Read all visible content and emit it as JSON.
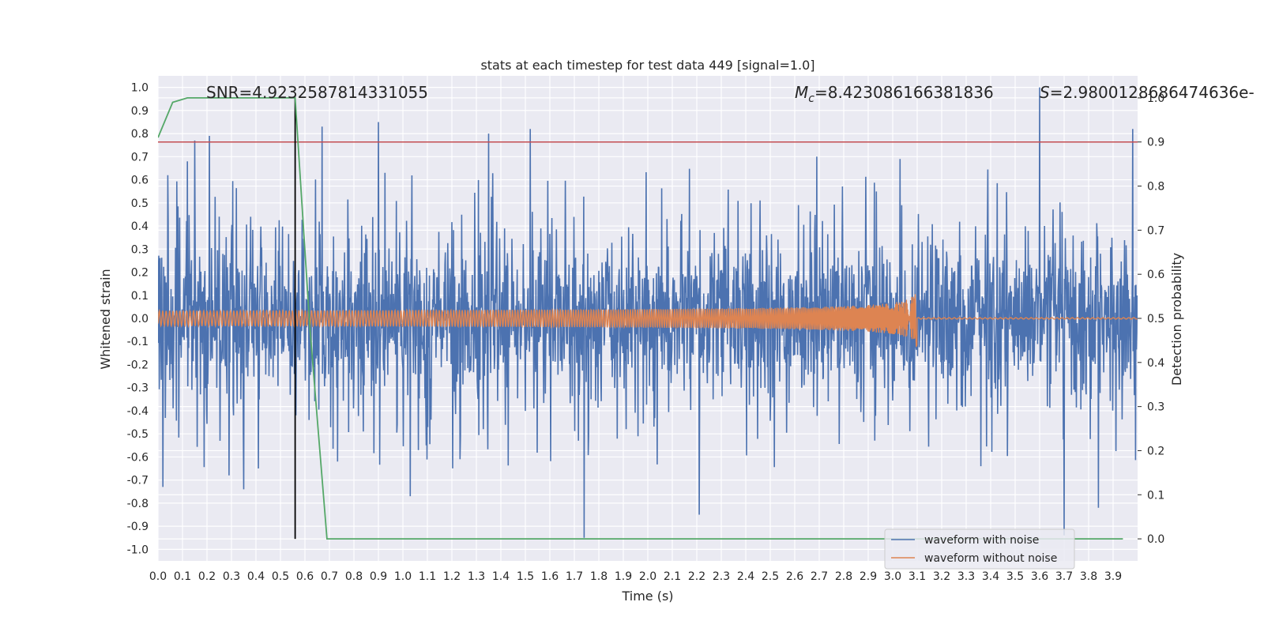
{
  "chart_data": {
    "type": "line",
    "title": "stats at each timestep for test data 449 [signal=1.0]",
    "xlabel": "Time (s)",
    "ylabel": "Whitened strain",
    "ylabel_right": "Detection probability",
    "xlim": [
      0.0,
      4.0
    ],
    "ylim": [
      -1.05,
      1.05
    ],
    "ylim_right": [
      -0.05,
      1.05
    ],
    "x_ticks": [
      "0.0",
      "0.1",
      "0.2",
      "0.3",
      "0.4",
      "0.5",
      "0.6",
      "0.7",
      "0.8",
      "0.9",
      "1.0",
      "1.1",
      "1.2",
      "1.3",
      "1.4",
      "1.5",
      "1.6",
      "1.7",
      "1.8",
      "1.9",
      "2.0",
      "2.1",
      "2.2",
      "2.3",
      "2.4",
      "2.5",
      "2.6",
      "2.7",
      "2.8",
      "2.9",
      "3.0",
      "3.1",
      "3.2",
      "3.3",
      "3.4",
      "3.5",
      "3.6",
      "3.7",
      "3.8",
      "3.9"
    ],
    "y_ticks": [
      "1.0",
      "0.9",
      "0.8",
      "0.7",
      "0.6",
      "0.5",
      "0.4",
      "0.3",
      "0.2",
      "0.1",
      "0.0",
      "-0.1",
      "-0.2",
      "-0.3",
      "-0.4",
      "-0.5",
      "-0.6",
      "-0.7",
      "-0.8",
      "-0.9",
      "-1.0"
    ],
    "y_ticks_right": [
      "1.0",
      "0.9",
      "0.8",
      "0.7",
      "0.6",
      "0.5",
      "0.4",
      "0.3",
      "0.2",
      "0.1",
      "0.0"
    ],
    "grid": true,
    "legend_position": "bottom-right",
    "annotations": {
      "snr": "SNR=4.9232587814331055",
      "mc_symbol": "M",
      "mc_subscript": "c",
      "mc_value": "=8.423086166381836",
      "s_symbol": "S",
      "s_value": "=2.980012868647463​6e-"
    },
    "series": [
      {
        "name": "waveform with noise",
        "color": "#4c72b0",
        "axis": "left",
        "description_peaks": [
          [
            0.02,
            -0.73
          ],
          [
            0.04,
            0.62
          ],
          [
            0.12,
            0.68
          ],
          [
            0.15,
            0.77
          ],
          [
            0.21,
            0.79
          ],
          [
            0.29,
            -0.68
          ],
          [
            0.35,
            -0.74
          ],
          [
            0.41,
            -0.65
          ],
          [
            0.67,
            0.83
          ],
          [
            0.9,
            0.85
          ],
          [
            1.03,
            -0.77
          ],
          [
            1.35,
            0.8
          ],
          [
            1.52,
            0.82
          ],
          [
            1.74,
            -0.95
          ],
          [
            2.21,
            -0.85
          ],
          [
            2.69,
            0.7
          ],
          [
            3.03,
            0.69
          ],
          [
            3.6,
            1.0
          ],
          [
            3.7,
            -0.94
          ],
          [
            3.84,
            -0.82
          ],
          [
            3.98,
            0.82
          ]
        ],
        "amplitude": 0.3
      },
      {
        "name": "waveform without noise",
        "color": "#dd8452",
        "axis": "left",
        "chirp_end": 3.1,
        "chirp_peak_amplitude": 0.14
      },
      {
        "name": "detection probability",
        "color": "#55a868",
        "axis": "right",
        "x": [
          0.0,
          0.06,
          0.12,
          0.18,
          0.56,
          0.62,
          0.69,
          3.94
        ],
        "y": [
          0.91,
          0.99,
          1.0,
          1.0,
          1.0,
          0.48,
          0.0,
          0.0
        ]
      }
    ],
    "reference_lines": {
      "threshold_right": 0.9,
      "threshold_color": "#c44e52",
      "vertical_x": 0.56,
      "vertical_color": "#000000"
    }
  }
}
